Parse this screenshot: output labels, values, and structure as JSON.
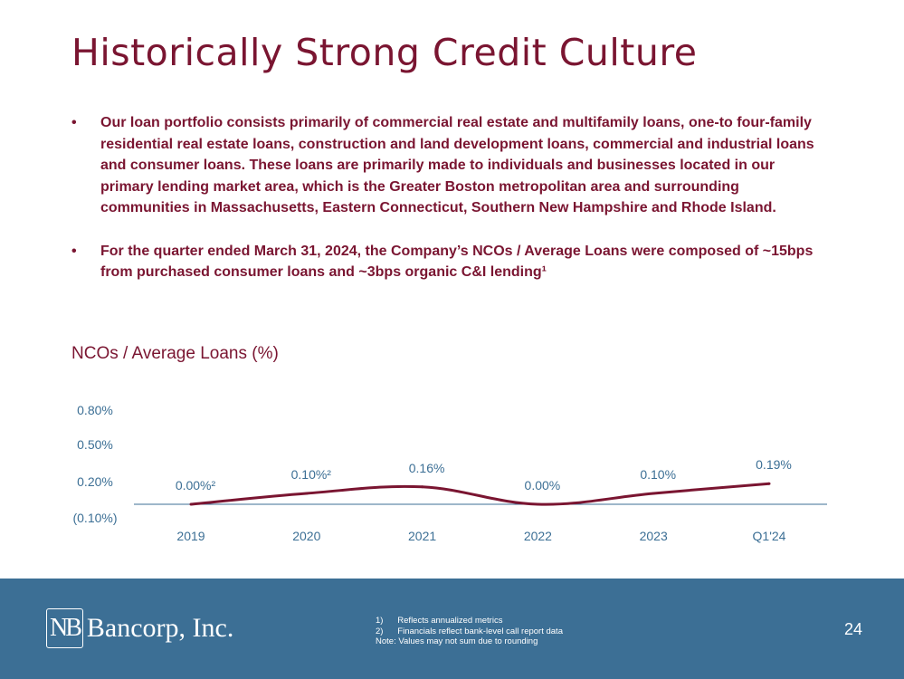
{
  "title": "Historically Strong Credit Culture",
  "bullets": [
    {
      "marker": "•",
      "text": "Our loan portfolio consists primarily of commercial real estate and multifamily loans, one-to four-family residential real estate loans, construction and land development loans, commercial and industrial loans and consumer loans. These loans are primarily made to individuals and businesses located in our primary lending market area, which is the Greater Boston metropolitan area and surrounding communities in Massachusetts, Eastern Connecticut, Southern New Hampshire and Rhode Island."
    },
    {
      "marker": "•",
      "text": "For the quarter ended March 31, 2024, the Company’s NCOs / Average Loans were composed of ~15bps from purchased consumer loans and ~3bps organic C&I lending¹"
    }
  ],
  "chart_data": {
    "type": "line",
    "title": "NCOs / Average Loans (%)",
    "categories": [
      "2019",
      "2020",
      "2021",
      "2022",
      "2023",
      "Q1'24"
    ],
    "values": [
      0.0,
      0.1,
      0.16,
      0.0,
      0.1,
      0.19
    ],
    "data_labels": [
      "0.00%²",
      "0.10%²",
      "0.16%",
      "0.00%",
      "0.10%",
      "0.19%"
    ],
    "y_ticks": [
      {
        "value": 0.8,
        "label": "0.80%"
      },
      {
        "value": 0.5,
        "label": "0.50%"
      },
      {
        "value": 0.2,
        "label": "0.20%"
      },
      {
        "value": -0.1,
        "label": "(0.10%)"
      }
    ],
    "ylim": [
      -0.1,
      0.8
    ],
    "line_color": "#7a1531",
    "baseline_color": "#3c6f95"
  },
  "footer": {
    "logo_mark": "NB",
    "logo_text": "Bancorp, Inc.",
    "notes": [
      "1)      Reflects annualized metrics",
      "2)      Financials reflect bank-level call report data",
      "Note: Values may not sum due to rounding"
    ],
    "page_number": "24"
  },
  "colors": {
    "brand": "#7a1531",
    "footer_bg": "#3c6f95"
  }
}
